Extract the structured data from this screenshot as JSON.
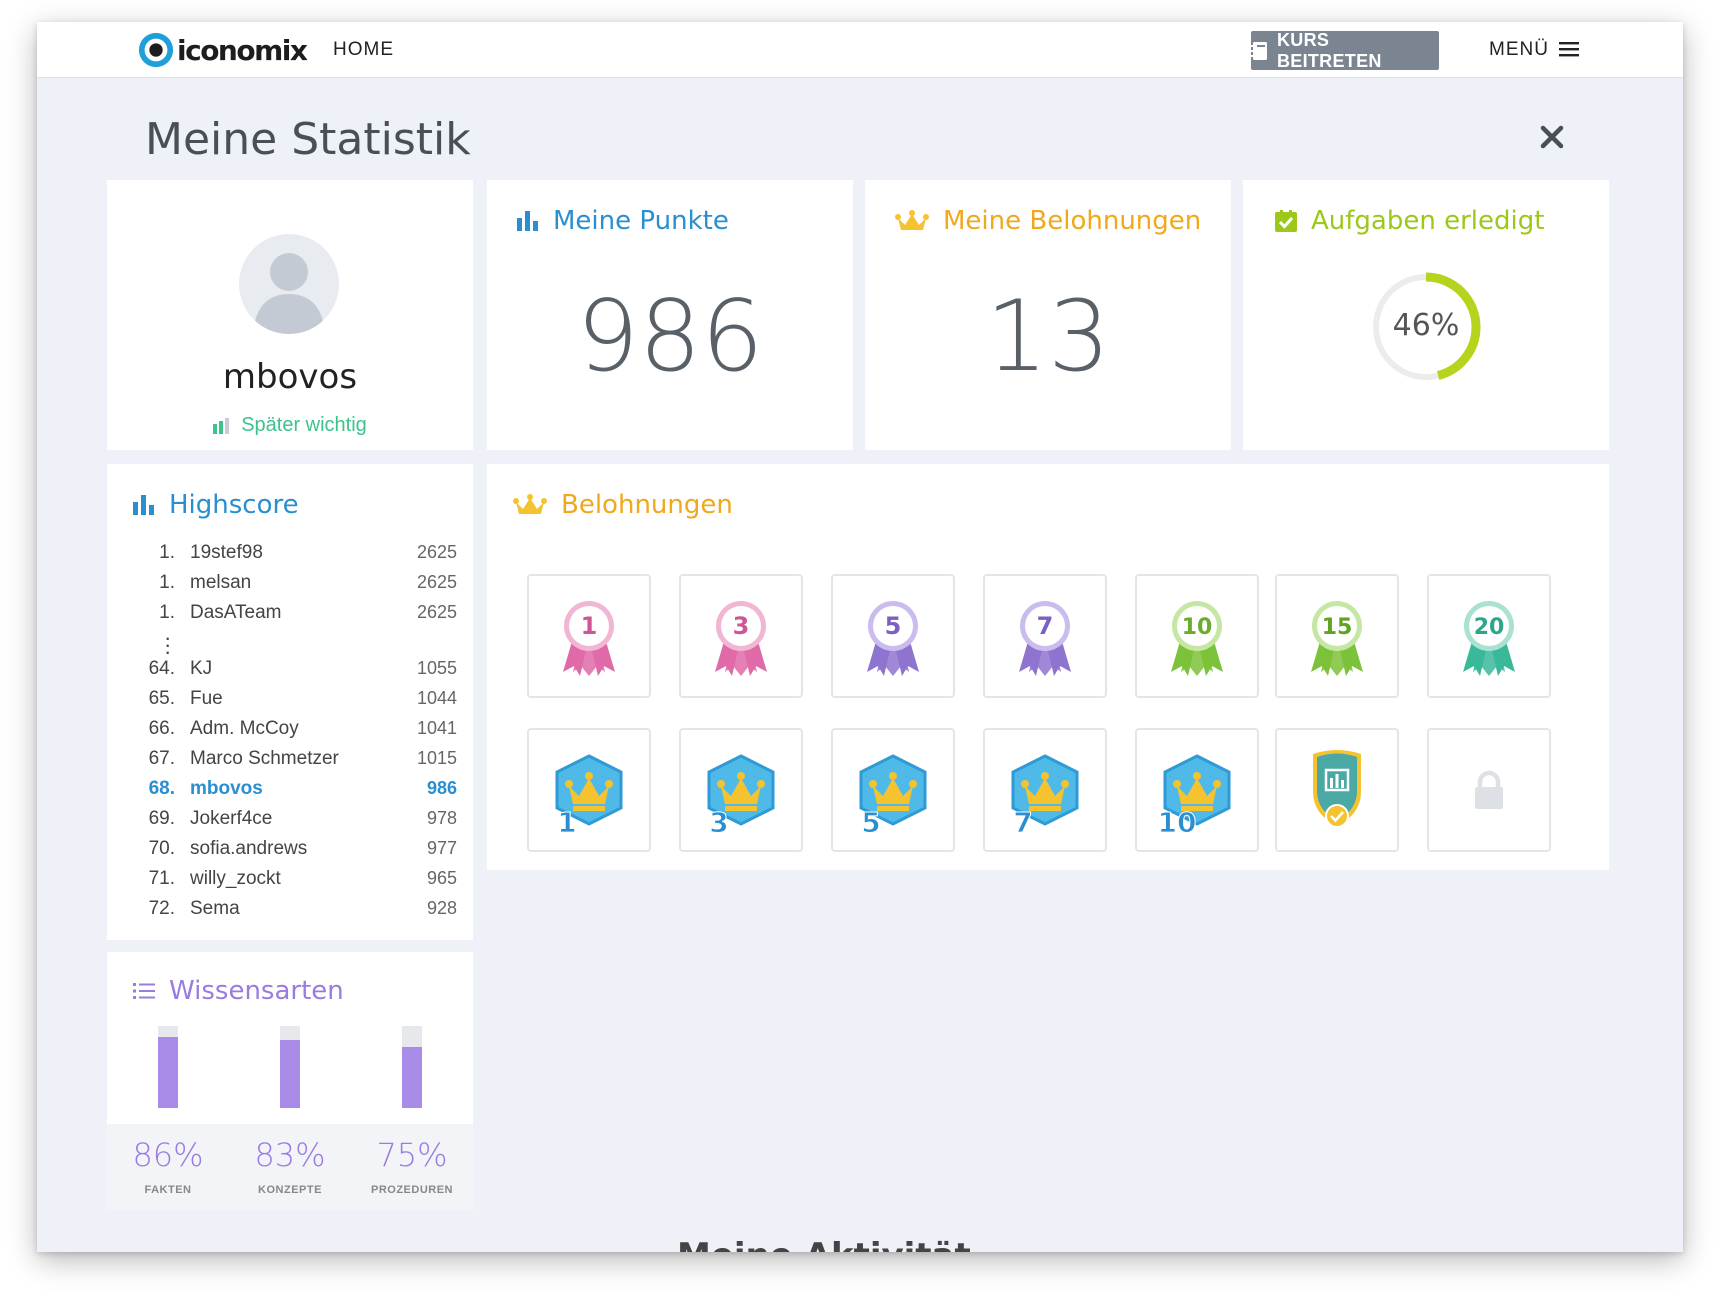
{
  "header": {
    "logo_text": "iconomix",
    "home_label": "HOME",
    "join_label": "KURS BEITRETEN",
    "menu_label": "MENÜ"
  },
  "page": {
    "title": "Meine Statistik",
    "footer_heading": "Meine Aktivität"
  },
  "profile": {
    "username": "mbovos",
    "status": "Später wichtig"
  },
  "points": {
    "title": "Meine Punkte",
    "value": "986"
  },
  "rewards_count": {
    "title": "Meine Belohnungen",
    "value": "13"
  },
  "tasks": {
    "title": "Aufgaben erledigt",
    "percent_label": "46%",
    "percent": 46
  },
  "highscore": {
    "title": "Highscore",
    "top": [
      {
        "rank": "1.",
        "name": "19stef98",
        "score": "2625"
      },
      {
        "rank": "1.",
        "name": "melsan",
        "score": "2625"
      },
      {
        "rank": "1.",
        "name": "DasATeam",
        "score": "2625"
      }
    ],
    "nearby": [
      {
        "rank": "64.",
        "name": "KJ",
        "score": "1055"
      },
      {
        "rank": "65.",
        "name": "Fue",
        "score": "1044"
      },
      {
        "rank": "66.",
        "name": "Adm. McCoy",
        "score": "1041"
      },
      {
        "rank": "67.",
        "name": "Marco Schmetzer",
        "score": "1015"
      },
      {
        "rank": "68.",
        "name": "mbovos",
        "score": "986",
        "current": true
      },
      {
        "rank": "69.",
        "name": "Jokerf4ce",
        "score": "978"
      },
      {
        "rank": "70.",
        "name": "sofia.andrews",
        "score": "977"
      },
      {
        "rank": "71.",
        "name": "willy_zockt",
        "score": "965"
      },
      {
        "rank": "72.",
        "name": "Sema",
        "score": "928"
      }
    ]
  },
  "knowledge": {
    "title": "Wissensarten",
    "items": [
      {
        "label": "FAKTEN",
        "percent_label": "86%",
        "percent": 86
      },
      {
        "label": "KONZEPTE",
        "percent_label": "83%",
        "percent": 83
      },
      {
        "label": "PROZEDUREN",
        "percent_label": "75%",
        "percent": 75
      }
    ]
  },
  "badges": {
    "title": "Belohnungen",
    "ribbons": [
      {
        "label": "1",
        "color": "#e06aa8",
        "ring": "#f1b6d3",
        "text": "#d05595"
      },
      {
        "label": "3",
        "color": "#e06aa8",
        "ring": "#f1b6d3",
        "text": "#d05595"
      },
      {
        "label": "5",
        "color": "#8e74cf",
        "ring": "#cabcee",
        "text": "#7a60c0"
      },
      {
        "label": "7",
        "color": "#8e74cf",
        "ring": "#cabcee",
        "text": "#7a60c0"
      },
      {
        "label": "10",
        "color": "#7cc23a",
        "ring": "#c5e7a3",
        "text": "#6aad2c"
      },
      {
        "label": "15",
        "color": "#7cc23a",
        "ring": "#c5e7a3",
        "text": "#5ea322"
      },
      {
        "label": "20",
        "color": "#3ab89a",
        "ring": "#a9e2d2",
        "text": "#2ea58a"
      }
    ],
    "crowns": [
      {
        "label": "1"
      },
      {
        "label": "3"
      },
      {
        "label": "5"
      },
      {
        "label": "7"
      },
      {
        "label": "10"
      }
    ],
    "colors": {
      "hex": "#4fb9e8",
      "crown": "#f5c230",
      "number": "#2a8fd0",
      "title": "#f0a81c"
    }
  }
}
